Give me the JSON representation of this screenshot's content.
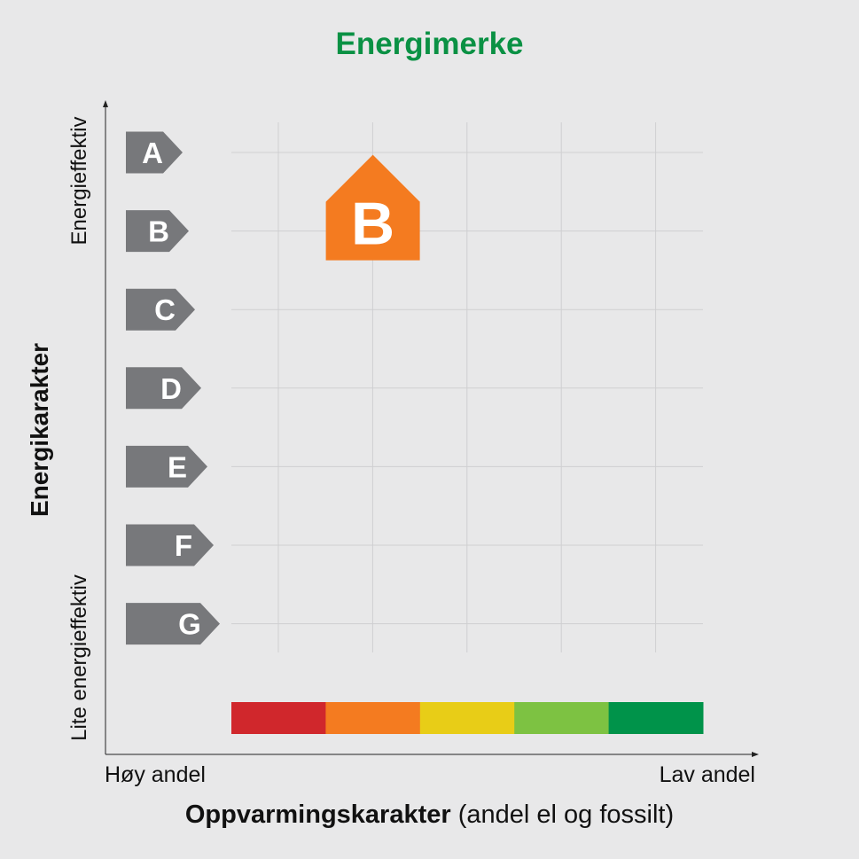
{
  "title": "Energimerke",
  "title_color": "#0a9144",
  "y_axis": {
    "label": "Energikarakter",
    "top_label": "Energieffektiv",
    "bottom_label": "Lite energieffektiv"
  },
  "x_axis": {
    "label_bold": "Oppvarmingskarakter",
    "label_rest": " (andel el og fossilt)",
    "low_label": "Høy andel",
    "high_label": "Lav andel"
  },
  "energy_grades": [
    "A",
    "B",
    "C",
    "D",
    "E",
    "F",
    "G"
  ],
  "grade_arrow_color": "#77787b",
  "heating_scale_colors": [
    "#d0272c",
    "#f47b20",
    "#e8cd17",
    "#7dc242",
    "#00934a"
  ],
  "badge": {
    "letter": "B",
    "energy_grade": "B",
    "heating_grade": 2,
    "color": "#f47b20"
  }
}
